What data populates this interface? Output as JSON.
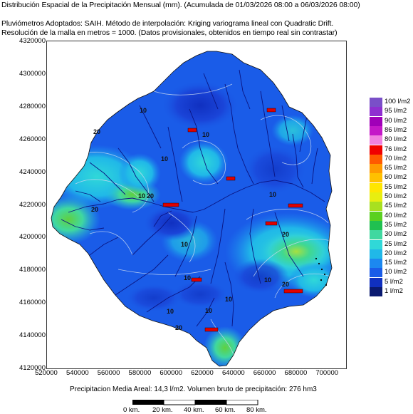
{
  "header": {
    "line1": "Distribución Espacial de la Precipitación Mensual (mm). (Acumulada de 01/03/2026 08:00 a 06/03/2026 08:00)",
    "line2": "Pluviómetros Adoptados: SAIH.  Método de interpolación: Kriging variograma lineal con Quadratic Drift.",
    "line3": "Resolución de la malla en metros = 1000. (Datos provisionales, obtenidos en tiempo real sin contrastar)"
  },
  "axes": {
    "y_ticks": [
      "4320000",
      "4300000",
      "4280000",
      "4260000",
      "4240000",
      "4220000",
      "4200000",
      "4180000",
      "4160000",
      "4140000",
      "4120000"
    ],
    "x_ticks": [
      "520000",
      "540000",
      "560000",
      "580000",
      "600000",
      "620000",
      "640000",
      "660000",
      "680000",
      "700000"
    ]
  },
  "legend": [
    {
      "label": "100 l/m2",
      "color": "#7a4fc8"
    },
    {
      "label": "95 l/m2",
      "color": "#8f2fd0"
    },
    {
      "label": "90 l/m2",
      "color": "#a000b8"
    },
    {
      "label": "86 l/m2",
      "color": "#c418c8"
    },
    {
      "label": "80 l/m2",
      "color": "#f080e0"
    },
    {
      "label": "76 l/m2",
      "color": "#f00000"
    },
    {
      "label": "70 l/m2",
      "color": "#ff5a00"
    },
    {
      "label": "65 l/m2",
      "color": "#ff9a00"
    },
    {
      "label": "60 l/m2",
      "color": "#ffc000"
    },
    {
      "label": "55 l/m2",
      "color": "#ffe600"
    },
    {
      "label": "50 l/m2",
      "color": "#e8ee10"
    },
    {
      "label": "45 l/m2",
      "color": "#a8e020"
    },
    {
      "label": "40 l/m2",
      "color": "#5ad020"
    },
    {
      "label": "35 l/m2",
      "color": "#20c050"
    },
    {
      "label": "30 l/m2",
      "color": "#40d8a0"
    },
    {
      "label": "25 l/m2",
      "color": "#30d8d8"
    },
    {
      "label": "20 l/m2",
      "color": "#20b8e8"
    },
    {
      "label": "15 l/m2",
      "color": "#1c88f0"
    },
    {
      "label": "10 l/m2",
      "color": "#1a5ce8"
    },
    {
      "label": "5 l/m2",
      "color": "#1030c0"
    },
    {
      "label": "1 l/m2",
      "color": "#0a1a70"
    }
  ],
  "contour_labels": [
    "10",
    "20",
    "10",
    "10",
    "10",
    "20",
    "10",
    "10",
    "10",
    "20",
    "10",
    "20",
    "10",
    "10",
    "20",
    "10",
    "20"
  ],
  "footer": "Precipitacion Media Areal: 14,3 l/m2. Volumen bruto de precipitación: 276 hm3",
  "scale_labels": [
    "0 km.",
    "20 km.",
    "40 km.",
    "60 km.",
    "80 km."
  ]
}
